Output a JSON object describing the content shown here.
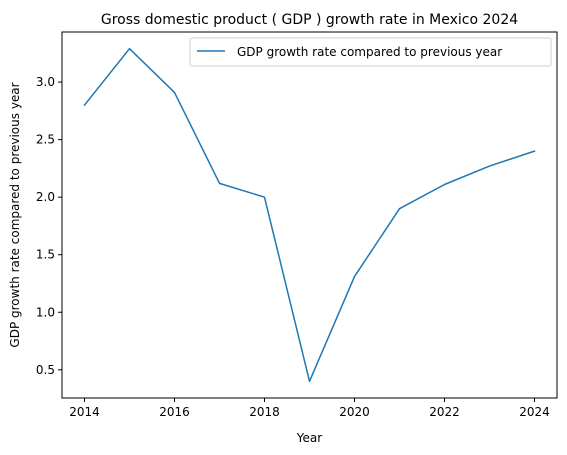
{
  "chart_data": {
    "type": "line",
    "title": "Gross domestic product ( GDP ) growth rate in Mexico 2024",
    "xlabel": "Year",
    "ylabel": "GDP growth rate compared to previous year",
    "x": [
      2014,
      2015,
      2016,
      2017,
      2018,
      2019,
      2020,
      2021,
      2022,
      2023,
      2024
    ],
    "series": [
      {
        "name": "GDP growth rate compared to previous year",
        "values": [
          2.8,
          3.29,
          2.91,
          2.12,
          2.0,
          0.4,
          1.31,
          1.9,
          2.11,
          2.27,
          2.4
        ],
        "color": "#1f77b4"
      }
    ],
    "xlim": [
      2013.5,
      2024.5
    ],
    "ylim": [
      0.255,
      3.435
    ],
    "xticks": [
      "2014",
      "2016",
      "2018",
      "2020",
      "2022",
      "2024"
    ],
    "yticks": [
      "0.5",
      "1.0",
      "1.5",
      "2.0",
      "2.5",
      "3.0"
    ],
    "grid": false,
    "legend_position": "top-right"
  }
}
